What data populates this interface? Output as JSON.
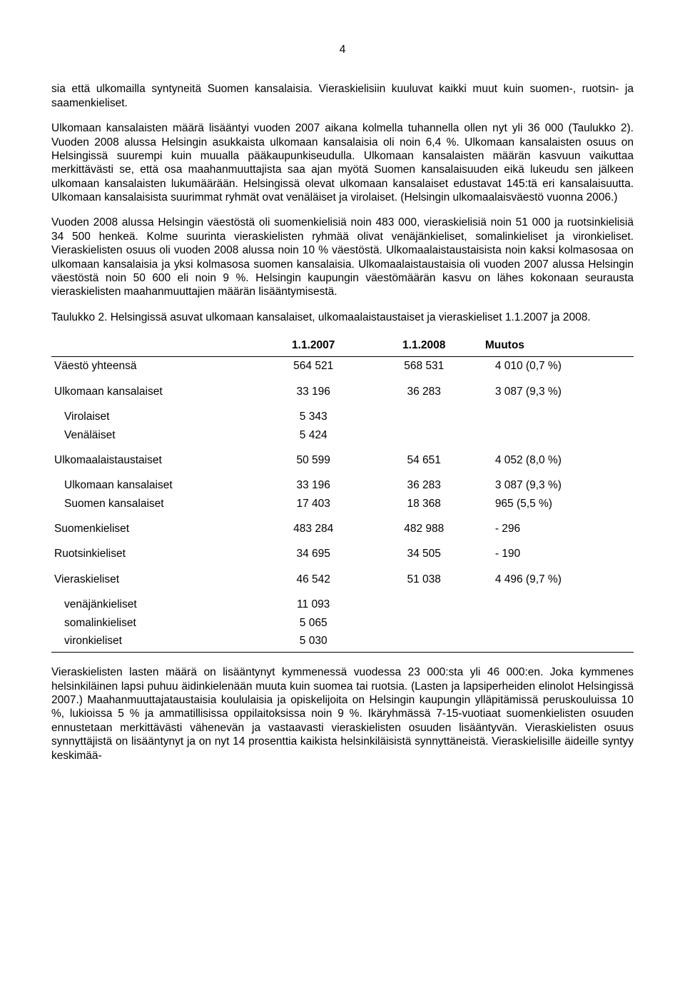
{
  "page_number": "4",
  "paragraphs": {
    "p1": "sia että ulkomailla syntyneitä Suomen kansalaisia. Vieraskielisiin kuuluvat kaikki muut kuin suomen-, ruotsin- ja saamenkieliset.",
    "p2": "Ulkomaan kansalaisten määrä lisääntyi vuoden 2007 aikana kolmella tuhannella ollen nyt yli 36 000 (Taulukko 2). Vuoden 2008 alussa Helsingin asukkaista ulkomaan kansalaisia oli noin 6,4 %. Ulkomaan kansalaisten osuus on Helsingissä suurempi kuin muualla pääkaupunkiseudulla. Ulkomaan kansalaisten määrän kasvuun vaikuttaa merkittävästi se, että osa maahanmuuttajista saa ajan myötä Suomen kansalaisuuden eikä lukeudu sen jälkeen ulkomaan kansalaisten lukumäärään. Helsingissä olevat ulkomaan kansalaiset edustavat 145:tä eri kansalaisuutta. Ulkomaan kansalaisista suurimmat ryhmät ovat venäläiset ja virolaiset. (Helsingin ulkomaalaisväestö vuonna 2006.)",
    "p3": "Vuoden 2008 alussa Helsingin väestöstä oli suomenkielisiä noin 483 000, vieraskielisiä noin 51 000 ja ruotsinkielisiä 34 500 henkeä. Kolme suurinta vieraskielisten ryhmää olivat venäjänkieliset, somalinkieliset ja vironkieliset. Vieraskielisten osuus oli vuoden 2008 alussa noin 10 % väestöstä. Ulkomaalaistaustaisista noin kaksi kolmasosaa on ulkomaan kansalaisia ja yksi kolmasosa suomen kansalaisia. Ulkomaalaistaustaisia oli vuoden 2007 alussa Helsingin väestöstä noin 50 600 eli noin 9 %. Helsingin kaupungin väestömäärän kasvu on lähes kokonaan seurausta vieraskielisten maahanmuuttajien määrän lisääntymisestä.",
    "caption": "Taulukko 2. Helsingissä asuvat ulkomaan kansalaiset, ulkomaalaistaustaiset ja vieraskieliset 1.1.2007 ja 2008.",
    "p4": "Vieraskielisten lasten määrä on lisääntynyt kymmenessä vuodessa 23 000:sta yli 46 000:en. Joka kymmenes helsinkiläinen lapsi puhuu äidinkielenään muuta kuin suomea tai ruotsia. (Lasten ja lapsiperheiden elinolot Helsingissä 2007.) Maahanmuuttajataustaisia koululaisia ja opiskelijoita on Helsingin kaupungin ylläpitämissä peruskouluissa 10 %, lukioissa 5 % ja ammatillisissa oppilaitoksissa noin 9 %. Ikäryhmässä 7-15-vuotiaat suomenkielisten osuuden ennustetaan merkittävästi vähenevän ja vastaavasti vieraskielisten osuuden lisääntyvän. Vieraskielisten osuus synnyttäjistä on lisääntynyt ja on nyt 14 prosenttia kaikista helsinkiläisistä synnyttäneistä. Vieraskielisille äideille syntyy keskimää-"
  },
  "table": {
    "headers": {
      "col1": "",
      "col2": "1.1.2007",
      "col3": "1.1.2008",
      "col4": "Muutos"
    },
    "rows": [
      {
        "label": "Väestö yhteensä",
        "indent": 0,
        "c2007": "564 521",
        "c2008": "568 531",
        "mut": "4 010 (0,7 %)"
      },
      {
        "label": "Ulkomaan kansalaiset",
        "indent": 0,
        "c2007": "33 196",
        "c2008": "36 283",
        "mut": "3 087 (9,3 %)"
      },
      {
        "label": "Virolaiset",
        "indent": 1,
        "c2007": "5 343",
        "c2008": "",
        "mut": ""
      },
      {
        "label": "Venäläiset",
        "indent": 1,
        "c2007": "5 424",
        "c2008": "",
        "mut": ""
      },
      {
        "label": "Ulkomaalaistaustaiset",
        "indent": 0,
        "c2007": "50 599",
        "c2008": "54 651",
        "mut": "4 052 (8,0 %)"
      },
      {
        "label": "Ulkomaan kansalaiset",
        "indent": 1,
        "c2007": "33 196",
        "c2008": "36 283",
        "mut": "3 087 (9,3 %)"
      },
      {
        "label": "Suomen kansalaiset",
        "indent": 1,
        "c2007": "17 403",
        "c2008": "18 368",
        "mut": "   965 (5,5 %)"
      },
      {
        "label": "Suomenkieliset",
        "indent": 0,
        "c2007": "483 284",
        "c2008": "482 988",
        "mut": "- 296"
      },
      {
        "label": "Ruotsinkieliset",
        "indent": 0,
        "c2007": "34 695",
        "c2008": " 34 505",
        "mut": "- 190"
      },
      {
        "label": "Vieraskieliset",
        "indent": 0,
        "c2007": "46 542",
        "c2008": " 51 038",
        "mut": " 4 496 (9,7 %)"
      },
      {
        "label": "venäjänkieliset",
        "indent": 1,
        "c2007": "11 093",
        "c2008": "",
        "mut": ""
      },
      {
        "label": "somalinkieliset",
        "indent": 1,
        "c2007": "5 065",
        "c2008": "",
        "mut": ""
      },
      {
        "label": "vironkieliset",
        "indent": 1,
        "c2007": "5 030",
        "c2008": "",
        "mut": ""
      }
    ]
  }
}
